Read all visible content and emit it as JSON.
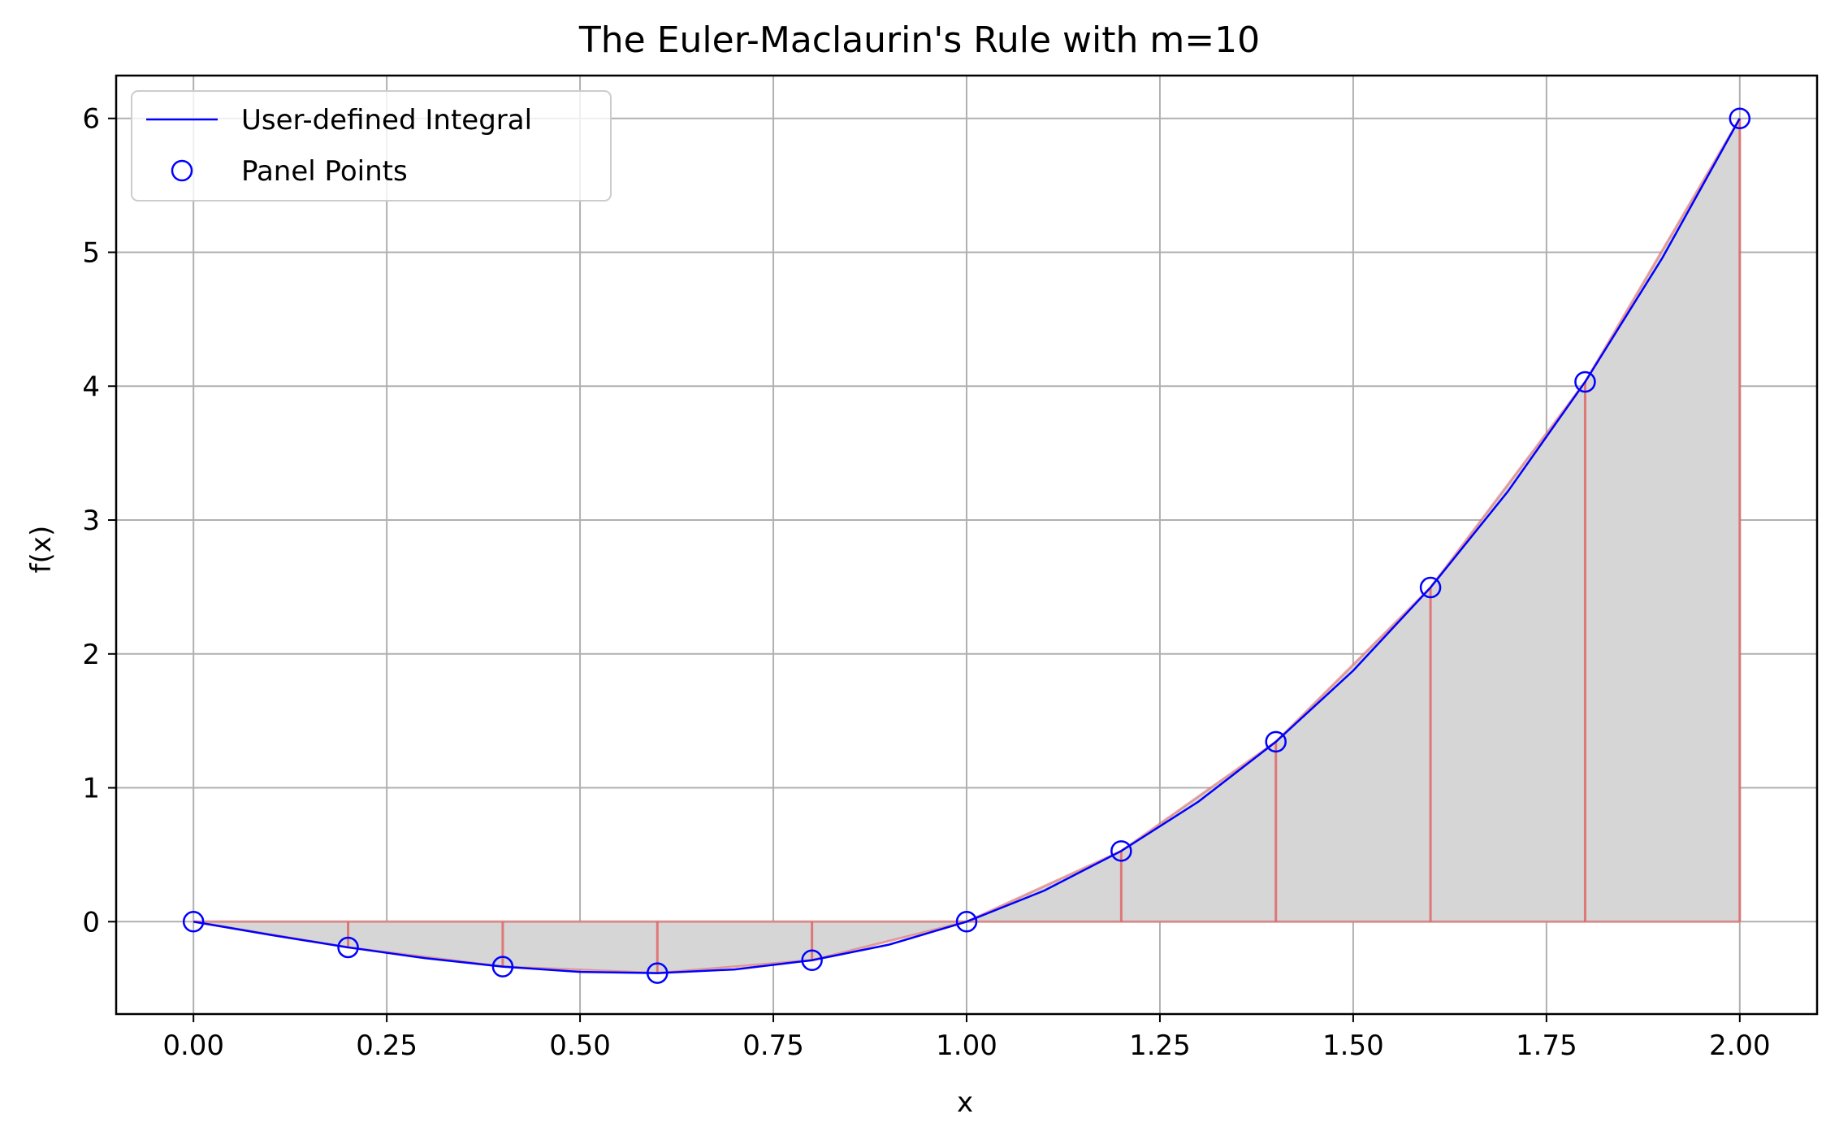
{
  "chart_data": {
    "type": "line",
    "title": "The Euler-Maclaurin's Rule with m=10",
    "xlabel": "x",
    "ylabel": "f(x)",
    "xlim": [
      -0.1,
      2.1
    ],
    "ylim": [
      -0.69,
      6.32
    ],
    "x_ticks": [
      0.0,
      0.25,
      0.5,
      0.75,
      1.0,
      1.25,
      1.5,
      1.75,
      2.0
    ],
    "x_tick_labels": [
      "0.00",
      "0.25",
      "0.50",
      "0.75",
      "1.00",
      "1.25",
      "1.50",
      "1.75",
      "2.00"
    ],
    "y_ticks": [
      0,
      1,
      2,
      3,
      4,
      5,
      6
    ],
    "y_tick_labels": [
      "0",
      "1",
      "2",
      "3",
      "4",
      "5",
      "6"
    ],
    "grid": true,
    "legend_position": "top-left",
    "colors": {
      "curve": "#0000ff",
      "markers": "#0000ff",
      "fill": "#d6d6d6",
      "panel_lines": "#e06666",
      "grid": "#b0b0b0"
    },
    "series": [
      {
        "name": "User-defined Integral",
        "kind": "line",
        "x": [
          0.0,
          0.1,
          0.2,
          0.3,
          0.4,
          0.5,
          0.6,
          0.7,
          0.8,
          0.9,
          1.0,
          1.1,
          1.2,
          1.3,
          1.4,
          1.5,
          1.6,
          1.7,
          1.8,
          1.9,
          2.0
        ],
        "y": [
          0.0,
          -0.099,
          -0.192,
          -0.273,
          -0.336,
          -0.375,
          -0.384,
          -0.357,
          -0.288,
          -0.171,
          0.0,
          0.231,
          0.528,
          0.897,
          1.344,
          1.875,
          2.496,
          3.213,
          4.032,
          4.959,
          6.0
        ]
      },
      {
        "name": "Panel Points",
        "kind": "scatter",
        "x": [
          0.0,
          0.2,
          0.4,
          0.6,
          0.8,
          1.0,
          1.2,
          1.4,
          1.6,
          1.8,
          2.0
        ],
        "y": [
          0.0,
          -0.192,
          -0.336,
          -0.384,
          -0.288,
          0.0,
          0.528,
          1.344,
          2.496,
          4.032,
          6.0
        ]
      }
    ]
  }
}
